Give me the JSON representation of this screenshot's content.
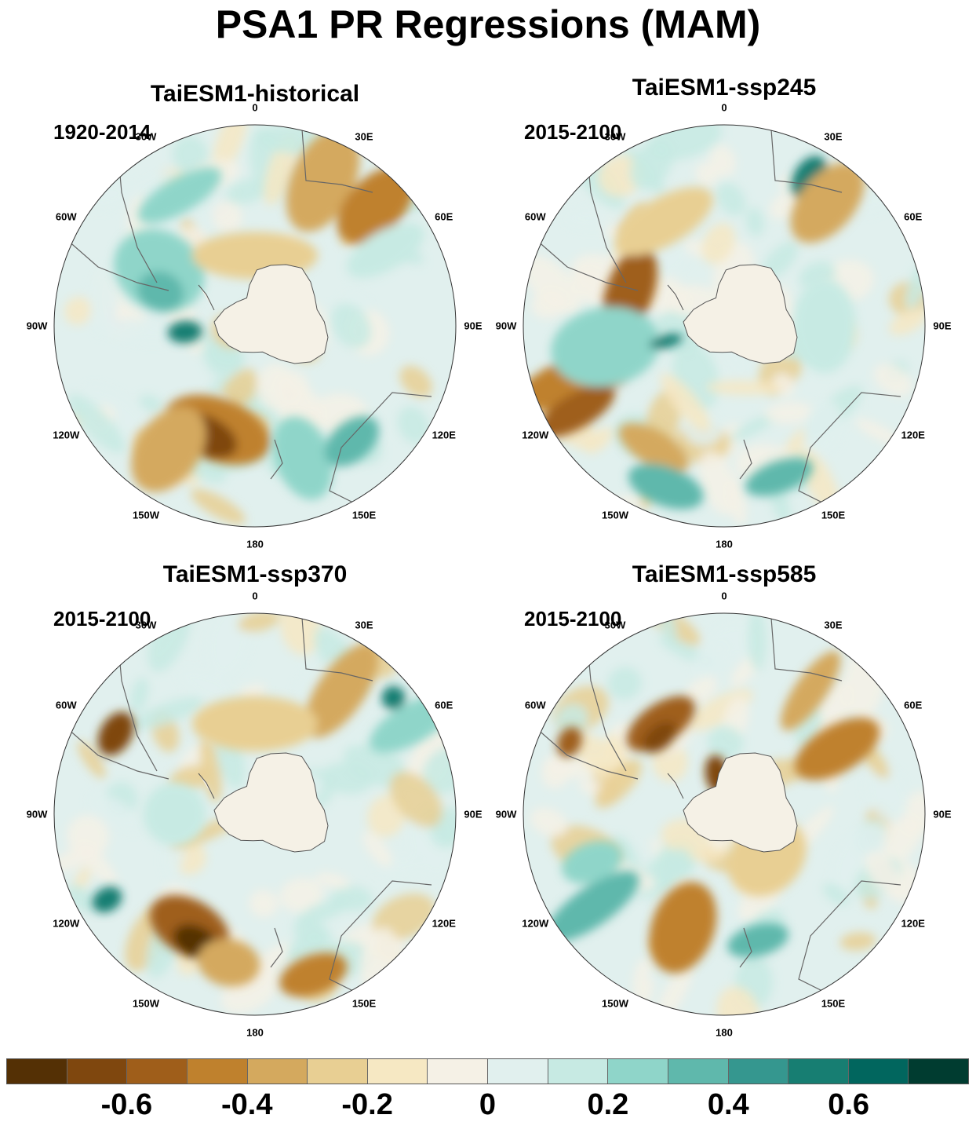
{
  "title": "PSA1 PR Regressions (MAM)",
  "panels": [
    {
      "title": "TaiESM1-historical",
      "period": "1920-2014"
    },
    {
      "title": "TaiESM1-ssp245",
      "period": "2015-2100"
    },
    {
      "title": "TaiESM1-ssp370",
      "period": "2015-2100"
    },
    {
      "title": "TaiESM1-ssp585",
      "period": "2015-2100"
    }
  ],
  "longitude_labels": [
    "0",
    "30E",
    "60E",
    "90E",
    "120E",
    "150E",
    "180",
    "150W",
    "120W",
    "90W",
    "60W",
    "30W"
  ],
  "colorbar": {
    "colors": [
      "#543005",
      "#7f470e",
      "#9f5e1a",
      "#bf812d",
      "#d4a95e",
      "#e8cf93",
      "#f6e8c3",
      "#f5f1e6",
      "#e1f0ee",
      "#c7eae3",
      "#8fd5c9",
      "#5fb8ac",
      "#35978f",
      "#177e72",
      "#01665e",
      "#003c30"
    ],
    "labels": [
      "-0.6",
      "-0.4",
      "-0.2",
      "0",
      "0.2",
      "0.4",
      "0.6"
    ]
  },
  "chart_data": {
    "type": "heatmap",
    "projection": "south polar stereographic",
    "variable": "PR regression onto PSA1",
    "season": "MAM",
    "color_levels": [
      -0.7,
      -0.6,
      -0.5,
      -0.4,
      -0.3,
      -0.2,
      -0.1,
      0,
      0.1,
      0.2,
      0.3,
      0.4,
      0.5,
      0.6,
      0.7
    ],
    "color_range": [
      -0.8,
      0.8
    ]
  }
}
